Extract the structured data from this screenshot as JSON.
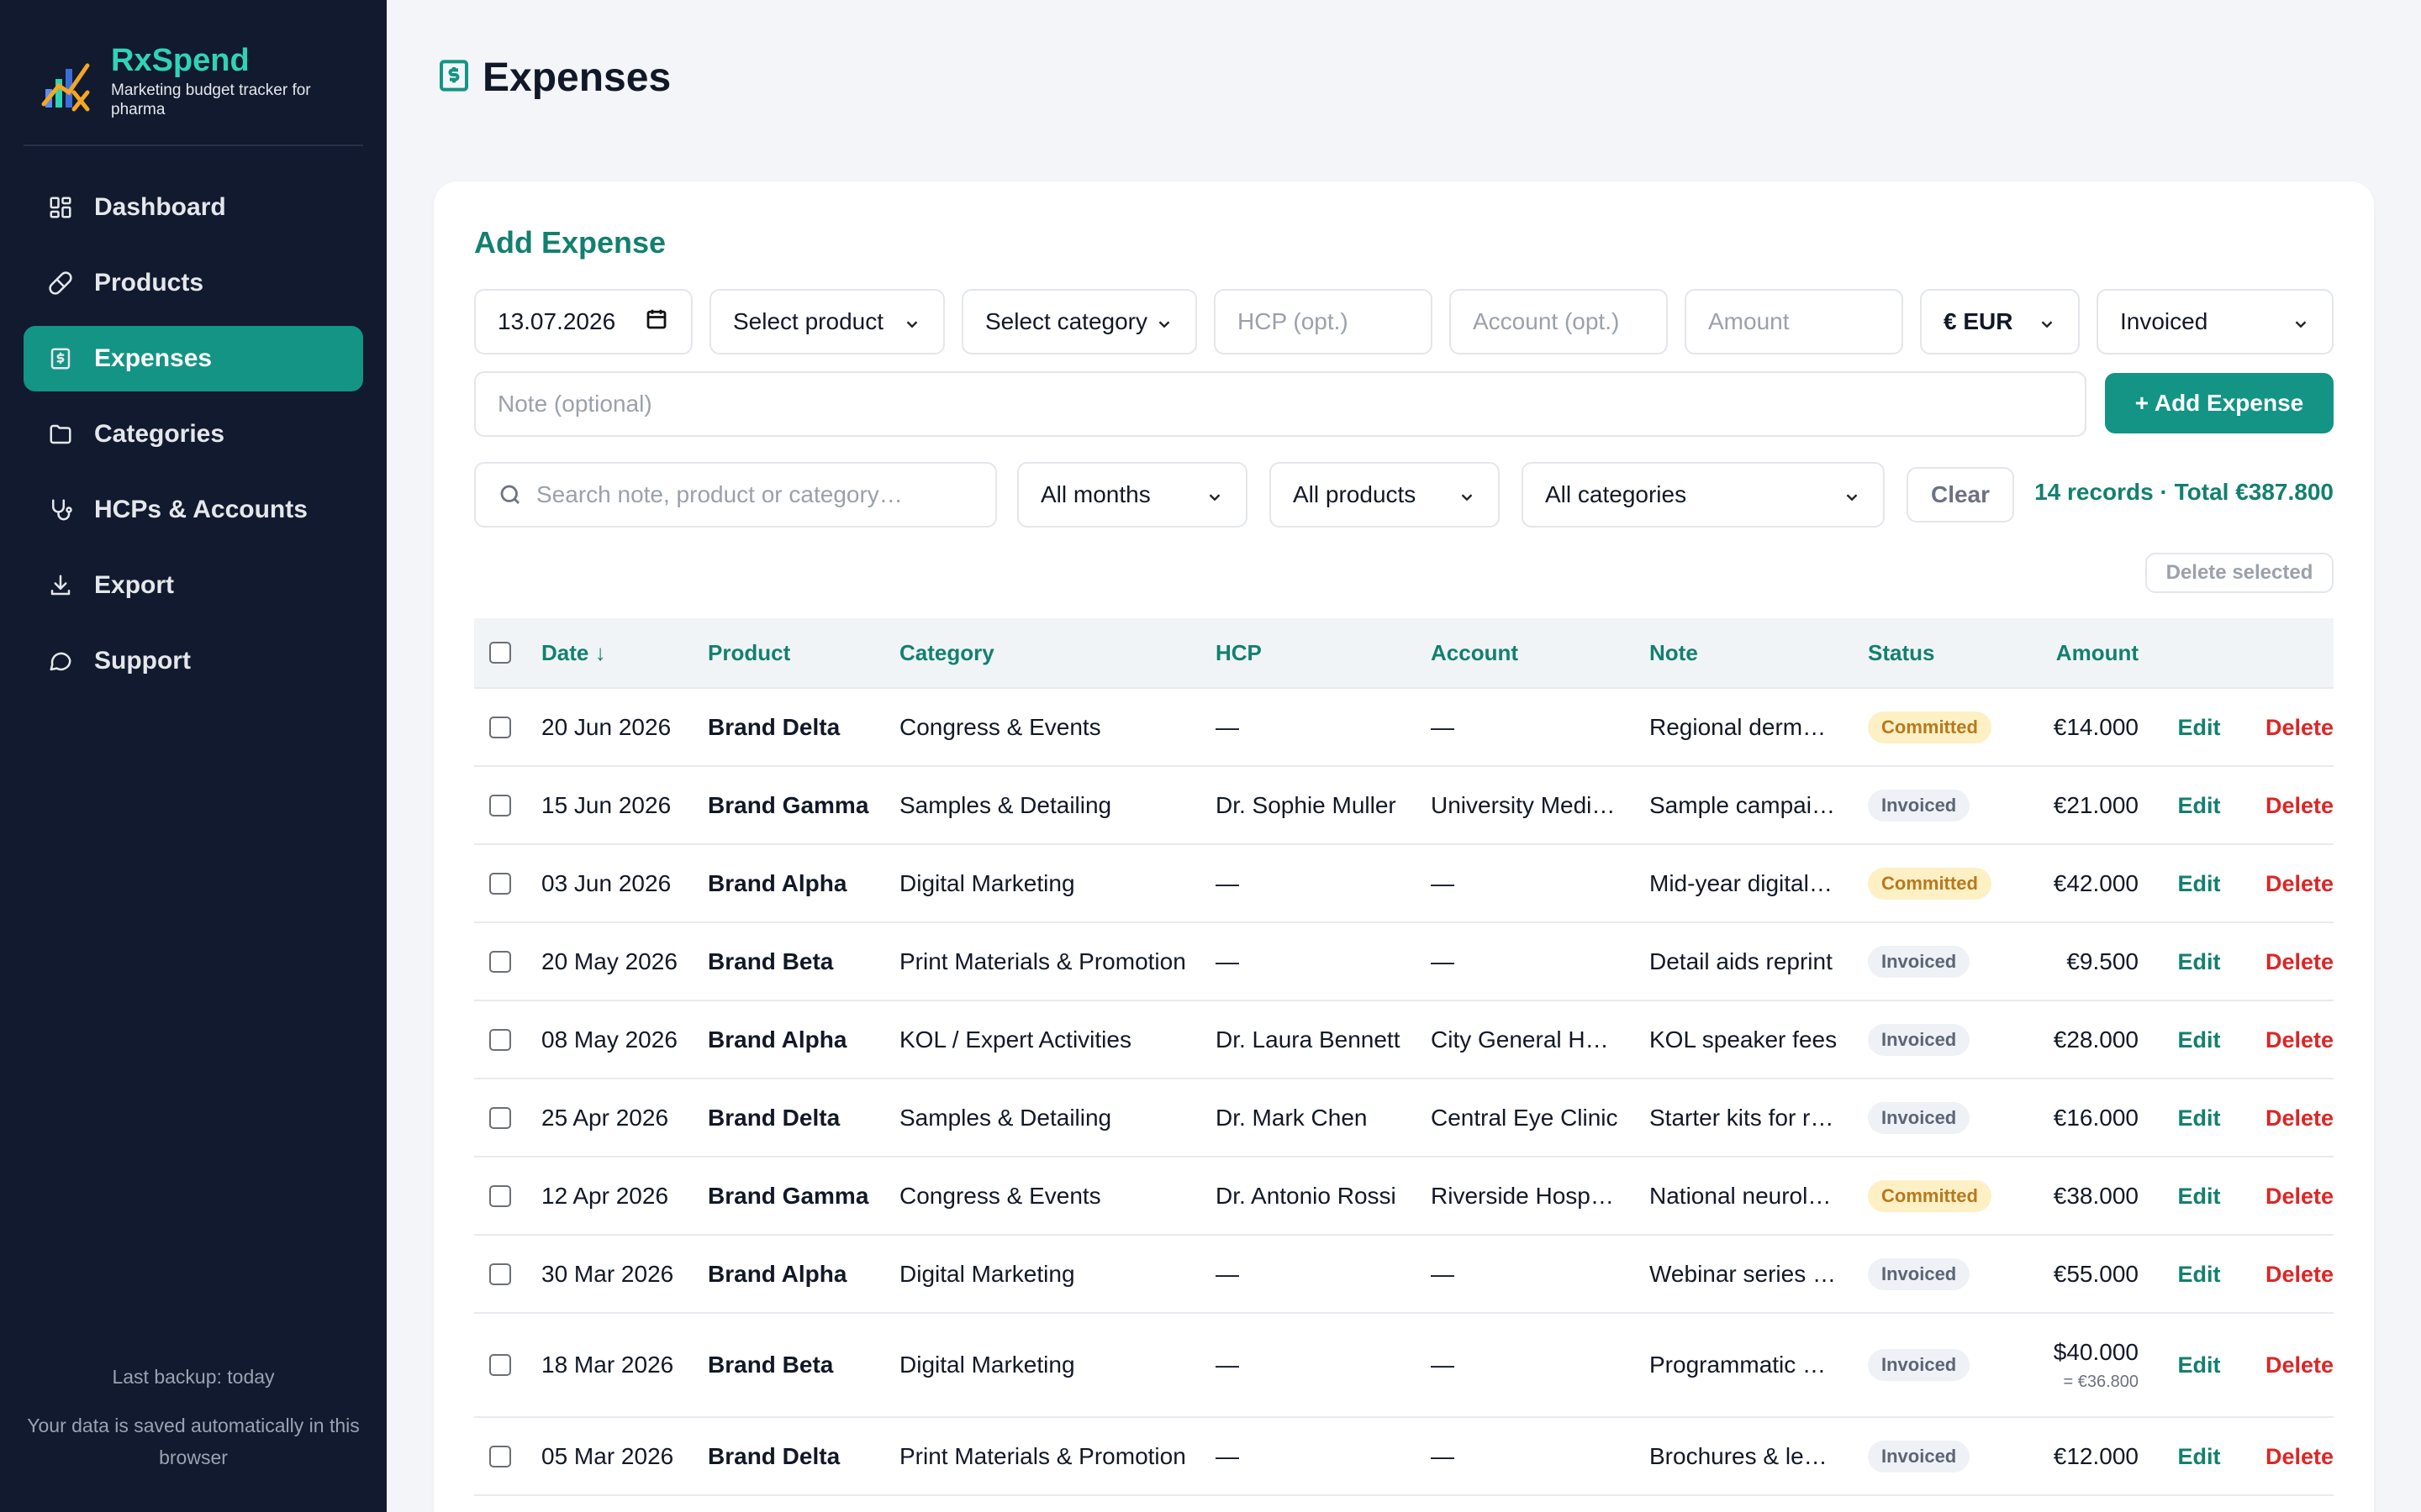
{
  "app": {
    "name": "RxSpend",
    "tagline": "Marketing budget tracker for pharma"
  },
  "colors": {
    "accent": "#139484",
    "sidebar_bg": "#111a2e",
    "danger": "#dc2626",
    "committed_bg": "#fdf0c4"
  },
  "sidebar": {
    "items": [
      {
        "label": "Dashboard",
        "icon": "grid-icon"
      },
      {
        "label": "Products",
        "icon": "pill-icon"
      },
      {
        "label": "Expenses",
        "icon": "receipt-icon",
        "active": true
      },
      {
        "label": "Categories",
        "icon": "folder-icon"
      },
      {
        "label": "HCPs & Accounts",
        "icon": "stethoscope-icon"
      },
      {
        "label": "Export",
        "icon": "download-icon"
      },
      {
        "label": "Support",
        "icon": "chat-icon"
      }
    ],
    "backup": "Last backup: today",
    "saved_note": "Your data is saved automatically in this browser"
  },
  "page": {
    "title": "Expenses",
    "icon": "receipt-icon"
  },
  "form": {
    "title": "Add Expense",
    "date_value": "13.07.2026",
    "product_select": "Select product",
    "category_select": "Select category",
    "hcp_placeholder": "HCP (opt.)",
    "account_placeholder": "Account (opt.)",
    "amount_placeholder": "Amount",
    "currency": "€ EUR",
    "status": "Invoiced",
    "note_placeholder": "Note (optional)",
    "add_button": "+ Add Expense"
  },
  "filters": {
    "search_placeholder": "Search note, product or category…",
    "months": "All months",
    "products": "All products",
    "categories": "All categories",
    "clear": "Clear",
    "summary": "14 records · Total €387.800",
    "delete_selected": "Delete selected"
  },
  "table": {
    "columns": {
      "date": "Date ↓",
      "product": "Product",
      "category": "Category",
      "hcp": "HCP",
      "account": "Account",
      "note": "Note",
      "status": "Status",
      "amount": "Amount"
    },
    "edit_label": "Edit",
    "delete_label": "Delete",
    "rows": [
      {
        "date": "20 Jun 2026",
        "product": "Brand Delta",
        "category": "Congress & Events",
        "hcp": "—",
        "account": "—",
        "note": "Regional derm…",
        "status": "Committed",
        "amount": "€14.000"
      },
      {
        "date": "15 Jun 2026",
        "product": "Brand Gamma",
        "category": "Samples & Detailing",
        "hcp": "Dr. Sophie Muller",
        "account": "University Medi…",
        "note": "Sample campai…",
        "status": "Invoiced",
        "amount": "€21.000"
      },
      {
        "date": "03 Jun 2026",
        "product": "Brand Alpha",
        "category": "Digital Marketing",
        "hcp": "—",
        "account": "—",
        "note": "Mid-year digital…",
        "status": "Committed",
        "amount": "€42.000"
      },
      {
        "date": "20 May 2026",
        "product": "Brand Beta",
        "category": "Print Materials & Promotion",
        "hcp": "—",
        "account": "—",
        "note": "Detail aids reprint",
        "status": "Invoiced",
        "amount": "€9.500"
      },
      {
        "date": "08 May 2026",
        "product": "Brand Alpha",
        "category": "KOL / Expert Activities",
        "hcp": "Dr. Laura Bennett",
        "account": "City General H…",
        "note": "KOL speaker fees",
        "status": "Invoiced",
        "amount": "€28.000"
      },
      {
        "date": "25 Apr 2026",
        "product": "Brand Delta",
        "category": "Samples & Detailing",
        "hcp": "Dr. Mark Chen",
        "account": "Central Eye Clinic",
        "note": "Starter kits for r…",
        "status": "Invoiced",
        "amount": "€16.000"
      },
      {
        "date": "12 Apr 2026",
        "product": "Brand Gamma",
        "category": "Congress & Events",
        "hcp": "Dr. Antonio Rossi",
        "account": "Riverside Hosp…",
        "note": "National neurol…",
        "status": "Committed",
        "amount": "€38.000"
      },
      {
        "date": "30 Mar 2026",
        "product": "Brand Alpha",
        "category": "Digital Marketing",
        "hcp": "—",
        "account": "—",
        "note": "Webinar series …",
        "status": "Invoiced",
        "amount": "€55.000"
      },
      {
        "date": "18 Mar 2026",
        "product": "Brand Beta",
        "category": "Digital Marketing",
        "hcp": "—",
        "account": "—",
        "note": "Programmatic …",
        "status": "Invoiced",
        "amount": "$40.000",
        "converted": "= €36.800"
      },
      {
        "date": "05 Mar 2026",
        "product": "Brand Delta",
        "category": "Print Materials & Promotion",
        "hcp": "—",
        "account": "—",
        "note": "Brochures & le…",
        "status": "Invoiced",
        "amount": "€12.000"
      }
    ]
  }
}
